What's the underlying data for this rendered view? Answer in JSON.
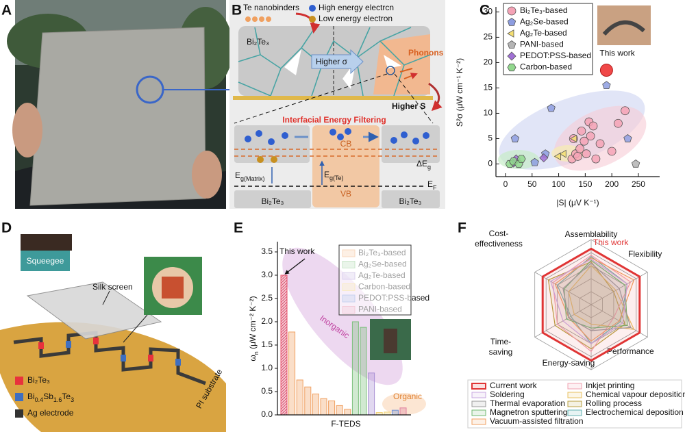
{
  "panel_a": {
    "label": "A"
  },
  "panel_b": {
    "label": "B",
    "te_nanobinders": "Te nanobinders",
    "high_energy": "High energy electrcn",
    "low_energy": "Low energy electron",
    "matrix": "Bi₂Te₃",
    "phonons": "Phonons",
    "higher_sigma": "Higher σ",
    "higher_s": "Higher S",
    "filtering": "Interfacial Energy Filtering",
    "cb": "CB",
    "vb": "VB",
    "delta_eg": [
      "ΔE",
      "g"
    ],
    "eg_matrix": [
      "E",
      "g(Matrix)"
    ],
    "eg_te": [
      "E",
      "g(Te)"
    ],
    "ef": [
      "E",
      "F"
    ],
    "left_material": "Bi₂Te₃",
    "right_material": "Bi₂Te₃"
  },
  "panel_d": {
    "label": "D",
    "squeegee": "Squeegee",
    "silk_screen": "Silk screen",
    "substrate": "PI substrate",
    "legend": [
      {
        "name": "Bi₂Te₃",
        "color": "#e8323c"
      },
      {
        "name": [
          "Bi",
          "0.4",
          "Sb",
          "1.6",
          "Te",
          "3"
        ],
        "color": "#3f6fc0"
      },
      {
        "name": "Ag electrode",
        "color": "#333333"
      }
    ]
  },
  "chart_data": [
    {
      "type": "scatter",
      "panel_label": "C",
      "xlabel": "|S| (μV K⁻¹)",
      "ylabel": "S²σ (μW cm⁻¹ K⁻²)",
      "xlim": [
        -18,
        290
      ],
      "ylim": [
        -2.5,
        31
      ],
      "xticks": [
        0,
        50,
        100,
        150,
        200,
        250
      ],
      "yticks": [
        0,
        5,
        10,
        15,
        20,
        25,
        30
      ],
      "series": [
        {
          "name": "Bi₂Te₃-based",
          "color": "#f4a3b6",
          "marker": "circle",
          "x": [
            125,
            128,
            132,
            136,
            140,
            143,
            148,
            152,
            157,
            160,
            165,
            170,
            178,
            200,
            212,
            225
          ],
          "values": [
            1.0,
            5.0,
            2.0,
            1.5,
            3.0,
            6.5,
            4.5,
            2.0,
            8.3,
            5.5,
            7.5,
            1.0,
            4.0,
            2.5,
            8.0,
            10.5
          ]
        },
        {
          "name": "Ag₂Se-based",
          "color": "#8d9de0",
          "marker": "pentagon",
          "x": [
            18,
            55,
            75,
            86,
            190,
            230
          ],
          "values": [
            5,
            0.3,
            2,
            11,
            15.5,
            5
          ]
        },
        {
          "name": "Ag₂Te-based",
          "color": "#f5df72",
          "marker": "triangle-left",
          "x": [
            100,
            110,
            130
          ],
          "values": [
            1.5,
            2,
            5
          ]
        },
        {
          "name": "PANI-based",
          "color": "#b4b4b4",
          "marker": "pentagon",
          "x": [
            245
          ],
          "values": [
            0
          ]
        },
        {
          "name": "PEDOT:PSS-based",
          "color": "#a070d4",
          "marker": "diamond",
          "x": [
            15,
            20,
            72
          ],
          "values": [
            0.2,
            1,
            1.2
          ]
        },
        {
          "name": "Carbon-based",
          "color": "#92d88e",
          "marker": "hexagon",
          "x": [
            8,
            15,
            25,
            30
          ],
          "values": [
            0,
            0.5,
            0,
            1
          ]
        }
      ],
      "highlight": {
        "label": "This work",
        "x": 190,
        "y": 18.5,
        "color": "#f04848"
      }
    },
    {
      "type": "bar",
      "panel_label": "E",
      "xlabel": "F-TEDS",
      "ylabel": [
        "ω",
        "n",
        " (μW cm⁻² K⁻²)"
      ],
      "ylim": [
        0,
        3.72
      ],
      "yticks": [
        {
          "value": 0,
          "label": "0.0"
        },
        0.5,
        {
          "value": 1,
          "label": "1.0"
        },
        1.5,
        {
          "value": 2,
          "label": "2.0"
        },
        2.5,
        {
          "value": 3,
          "label": "3.0"
        },
        3.5
      ],
      "series": [
        {
          "name": "Bi₂Te₃-based",
          "color": "#f0a060",
          "values": [
            1.78,
            0.75,
            0.6,
            0.45,
            0.35,
            0.3,
            0.2,
            0.12
          ]
        },
        {
          "name": "Ag₂Se-based",
          "color": "#7cc07c",
          "values": [
            2.0,
            1.88
          ]
        },
        {
          "name": "Ag₂Te-based",
          "color": "#a890d4",
          "values": [
            0.9
          ]
        },
        {
          "name": "Carbon-based",
          "color": "#f0d070",
          "values": [
            0.05,
            0.06
          ]
        },
        {
          "name": "PEDOT:PSS-based",
          "color": "#7090d4",
          "values": [
            0.1
          ]
        },
        {
          "name": "PANI-based",
          "color": "#e080a0",
          "values": [
            0.15
          ]
        }
      ],
      "highlight": {
        "label": "This work",
        "value": 3.0,
        "color": "#e8506a"
      },
      "annotations": {
        "inorganic": "Inorganic",
        "organic": "Organic"
      }
    },
    {
      "type": "radar",
      "panel_label": "F",
      "axes": [
        [
          "Assemblability"
        ],
        [
          "Flexibility"
        ],
        [
          "Performance"
        ],
        [
          "Energy-saving"
        ],
        [
          "Time-",
          "saving"
        ],
        [
          "Cost-",
          "effectiveness"
        ]
      ],
      "rlim": [
        0,
        5
      ],
      "rticks": [
        1,
        2,
        3,
        4,
        5
      ],
      "annotation": "This work",
      "series": [
        {
          "name": "Current work",
          "color": "#e03535",
          "values": [
            4.3,
            4.3,
            4.3,
            4.3,
            4.3,
            4.3
          ]
        },
        {
          "name": "Soldering",
          "color": "#c8a8e0",
          "values": [
            3.5,
            3.2,
            2.8,
            3.0,
            2.5,
            3.6
          ]
        },
        {
          "name": "Thermal evaporation",
          "color": "#9a9a9a",
          "values": [
            3.2,
            2.5,
            3.5,
            2.0,
            2.0,
            2.5
          ]
        },
        {
          "name": "Magnetron sputtering",
          "color": "#70b870",
          "values": [
            3.4,
            3.0,
            3.2,
            1.8,
            2.2,
            2.4
          ]
        },
        {
          "name": "Vacuum-assisted filtration",
          "color": "#f0a060",
          "values": [
            3.6,
            3.8,
            2.5,
            2.8,
            2.0,
            3.2
          ]
        },
        {
          "name": "Inkjet printing",
          "color": "#f0a0b0",
          "values": [
            3.8,
            3.5,
            2.0,
            3.6,
            3.0,
            3.4
          ]
        },
        {
          "name": "Chemical vapour deposition",
          "color": "#e8c060",
          "values": [
            3.0,
            2.2,
            3.8,
            1.5,
            1.5,
            2.0
          ]
        },
        {
          "name": "Rolling process",
          "color": "#b8a040",
          "values": [
            3.3,
            2.0,
            3.0,
            3.4,
            3.2,
            3.8
          ]
        },
        {
          "name": "Electrochemical deposition",
          "color": "#60b0b0",
          "values": [
            3.7,
            3.2,
            2.6,
            3.0,
            1.8,
            3.0
          ]
        }
      ]
    }
  ]
}
